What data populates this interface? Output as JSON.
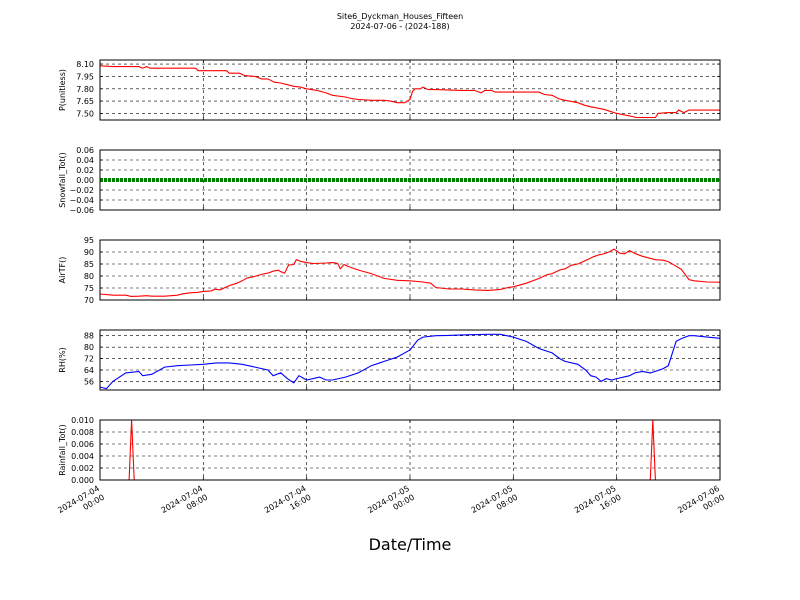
{
  "chart_data": {
    "type": "line",
    "title": "Site6_Dyckman_Houses_Fifteen",
    "subtitle": "2024-07-06 - (2024-188)",
    "xlabel": "Date/Time",
    "x_ticks": [
      {
        "hours": 0,
        "line1": "2024-07-04",
        "line2": "00:00"
      },
      {
        "hours": 8,
        "line1": "2024-07-04",
        "line2": "08:00"
      },
      {
        "hours": 16,
        "line1": "2024-07-04",
        "line2": "16:00"
      },
      {
        "hours": 24,
        "line1": "2024-07-05",
        "line2": "00:00"
      },
      {
        "hours": 32,
        "line1": "2024-07-05",
        "line2": "08:00"
      },
      {
        "hours": 40,
        "line1": "2024-07-05",
        "line2": "16:00"
      },
      {
        "hours": 48,
        "line1": "2024-07-06",
        "line2": "00:00"
      }
    ],
    "xlim_hours": [
      0,
      48
    ],
    "grid": true,
    "panels": [
      {
        "ylabel": "P(unitless)",
        "color": "#ff0000",
        "ylim": [
          7.42,
          8.15
        ],
        "yticks": [
          "8.10",
          "7.95",
          "7.80",
          "7.65",
          "7.50"
        ],
        "ytick_values": [
          8.1,
          7.95,
          7.8,
          7.65,
          7.5
        ],
        "series": [
          [
            0,
            8.08
          ],
          [
            1,
            8.07
          ],
          [
            2,
            8.07
          ],
          [
            3,
            8.07
          ],
          [
            3.3,
            8.05
          ],
          [
            3.6,
            8.07
          ],
          [
            3.9,
            8.05
          ],
          [
            5,
            8.05
          ],
          [
            6,
            8.05
          ],
          [
            7.4,
            8.05
          ],
          [
            7.6,
            8.02
          ],
          [
            8,
            8.02
          ],
          [
            9,
            8.02
          ],
          [
            9.8,
            8.02
          ],
          [
            10,
            7.99
          ],
          [
            10.8,
            7.99
          ],
          [
            11.2,
            7.96
          ],
          [
            12,
            7.95
          ],
          [
            12.5,
            7.92
          ],
          [
            13,
            7.92
          ],
          [
            13.5,
            7.88
          ],
          [
            14,
            7.87
          ],
          [
            14.5,
            7.85
          ],
          [
            15,
            7.83
          ],
          [
            15.5,
            7.82
          ],
          [
            16,
            7.8
          ],
          [
            16.8,
            7.78
          ],
          [
            17.5,
            7.75
          ],
          [
            18,
            7.72
          ],
          [
            19,
            7.7
          ],
          [
            19.5,
            7.68
          ],
          [
            20,
            7.67
          ],
          [
            21,
            7.66
          ],
          [
            22,
            7.66
          ],
          [
            22.5,
            7.65
          ],
          [
            23,
            7.63
          ],
          [
            23.6,
            7.63
          ],
          [
            24,
            7.67
          ],
          [
            24.2,
            7.77
          ],
          [
            24.4,
            7.8
          ],
          [
            24.8,
            7.8
          ],
          [
            25,
            7.82
          ],
          [
            25.4,
            7.79
          ],
          [
            26,
            7.79
          ],
          [
            28,
            7.78
          ],
          [
            29,
            7.78
          ],
          [
            29.5,
            7.75
          ],
          [
            29.8,
            7.78
          ],
          [
            30.3,
            7.78
          ],
          [
            30.6,
            7.76
          ],
          [
            32,
            7.76
          ],
          [
            34,
            7.76
          ],
          [
            34.4,
            7.73
          ],
          [
            35,
            7.72
          ],
          [
            35.5,
            7.68
          ],
          [
            36,
            7.66
          ],
          [
            37,
            7.63
          ],
          [
            37.5,
            7.6
          ],
          [
            38,
            7.58
          ],
          [
            39,
            7.55
          ],
          [
            39.6,
            7.52
          ],
          [
            40,
            7.5
          ],
          [
            41,
            7.47
          ],
          [
            41.5,
            7.45
          ],
          [
            42,
            7.45
          ],
          [
            43,
            7.45
          ],
          [
            43.2,
            7.5
          ],
          [
            44,
            7.51
          ],
          [
            44.6,
            7.51
          ],
          [
            44.8,
            7.54
          ],
          [
            45.2,
            7.51
          ],
          [
            45.6,
            7.54
          ],
          [
            47,
            7.54
          ],
          [
            48,
            7.54
          ]
        ]
      },
      {
        "ylabel": "Snowfall_Tot()",
        "color": "#008000",
        "ylim": [
          -0.06,
          0.06
        ],
        "yticks": [
          "0.06",
          "0.04",
          "0.02",
          "0.00",
          "−0.02",
          "−0.04",
          "−0.06"
        ],
        "ytick_values": [
          0.06,
          0.04,
          0.02,
          0.0,
          -0.02,
          -0.04,
          -0.06
        ],
        "series": [
          [
            0,
            0
          ],
          [
            48,
            0
          ]
        ]
      },
      {
        "ylabel": "AirTF()",
        "color": "#ff0000",
        "ylim": [
          70,
          95
        ],
        "yticks": [
          "95",
          "90",
          "85",
          "80",
          "75",
          "70"
        ],
        "ytick_values": [
          95,
          90,
          85,
          80,
          75,
          70
        ],
        "series": [
          [
            0,
            72.5
          ],
          [
            1,
            72
          ],
          [
            2,
            72
          ],
          [
            2.4,
            71.5
          ],
          [
            3,
            71.6
          ],
          [
            3.6,
            71.8
          ],
          [
            4,
            71.6
          ],
          [
            5,
            71.6
          ],
          [
            6,
            72
          ],
          [
            6.4,
            72.6
          ],
          [
            7,
            73
          ],
          [
            7.6,
            73.2
          ],
          [
            8,
            73.6
          ],
          [
            8.6,
            73.8
          ],
          [
            8.9,
            74.5
          ],
          [
            9.3,
            74.2
          ],
          [
            10,
            76
          ],
          [
            10.6,
            77
          ],
          [
            11,
            78
          ],
          [
            11.4,
            79.2
          ],
          [
            11.8,
            79.6
          ],
          [
            12.2,
            80.2
          ],
          [
            12.6,
            80.8
          ],
          [
            13,
            81.2
          ],
          [
            13.4,
            82
          ],
          [
            13.8,
            82.4
          ],
          [
            14,
            81.8
          ],
          [
            14.3,
            81.2
          ],
          [
            14.6,
            84.6
          ],
          [
            15,
            84.8
          ],
          [
            15.2,
            86.8
          ],
          [
            15.6,
            86
          ],
          [
            16,
            85.6
          ],
          [
            16.5,
            85.2
          ],
          [
            17.5,
            85.4
          ],
          [
            18,
            85.6
          ],
          [
            18.4,
            85.2
          ],
          [
            18.6,
            83
          ],
          [
            18.9,
            84.8
          ],
          [
            19.2,
            84
          ],
          [
            20,
            82.5
          ],
          [
            21,
            81
          ],
          [
            21.6,
            79.8
          ],
          [
            22,
            79
          ],
          [
            23,
            78.2
          ],
          [
            24,
            78
          ],
          [
            25,
            77.5
          ],
          [
            25.6,
            77
          ],
          [
            26,
            75.2
          ],
          [
            27,
            74.6
          ],
          [
            28,
            74.6
          ],
          [
            29,
            74.2
          ],
          [
            30,
            74
          ],
          [
            31,
            74.4
          ],
          [
            31.6,
            75.2
          ],
          [
            32,
            75.5
          ],
          [
            33,
            77
          ],
          [
            34,
            79
          ],
          [
            34.6,
            80.5
          ],
          [
            35,
            81
          ],
          [
            35.6,
            82.5
          ],
          [
            36,
            83
          ],
          [
            36.5,
            84.5
          ],
          [
            37,
            85
          ],
          [
            37.4,
            86
          ],
          [
            37.8,
            87
          ],
          [
            38.2,
            88
          ],
          [
            38.6,
            88.8
          ],
          [
            39,
            89.2
          ],
          [
            39.4,
            90
          ],
          [
            39.8,
            91.2
          ],
          [
            40.2,
            89.6
          ],
          [
            40.6,
            89.2
          ],
          [
            41,
            90.6
          ],
          [
            41.4,
            89.4
          ],
          [
            42,
            88.2
          ],
          [
            43,
            86.8
          ],
          [
            43.6,
            86.6
          ],
          [
            44,
            86
          ],
          [
            45,
            82.8
          ],
          [
            45.6,
            78.5
          ],
          [
            46,
            78
          ],
          [
            47,
            77.5
          ],
          [
            48,
            77.4
          ]
        ]
      },
      {
        "ylabel": "RH(%)",
        "color": "#0000ff",
        "ylim": [
          50,
          92
        ],
        "yticks": [
          "88",
          "80",
          "72",
          "64",
          "56"
        ],
        "ytick_values": [
          88,
          80,
          72,
          64,
          56
        ],
        "series": [
          [
            0,
            52
          ],
          [
            0.5,
            51
          ],
          [
            1,
            56
          ],
          [
            2,
            62
          ],
          [
            3,
            63
          ],
          [
            3.3,
            60
          ],
          [
            4,
            61
          ],
          [
            5,
            66
          ],
          [
            6,
            67
          ],
          [
            7,
            67.5
          ],
          [
            8,
            68
          ],
          [
            9,
            69
          ],
          [
            10,
            69
          ],
          [
            11,
            68
          ],
          [
            12,
            66
          ],
          [
            13,
            64
          ],
          [
            13.4,
            60
          ],
          [
            14,
            62
          ],
          [
            14.5,
            58
          ],
          [
            15,
            55
          ],
          [
            15.4,
            60
          ],
          [
            16,
            57
          ],
          [
            17,
            59
          ],
          [
            17.5,
            57
          ],
          [
            18,
            57
          ],
          [
            19,
            59
          ],
          [
            20,
            62
          ],
          [
            21,
            67
          ],
          [
            22,
            70
          ],
          [
            23,
            73
          ],
          [
            24,
            78
          ],
          [
            24.6,
            85
          ],
          [
            25,
            87
          ],
          [
            26,
            88
          ],
          [
            27,
            88.2
          ],
          [
            28,
            88.6
          ],
          [
            30,
            89
          ],
          [
            31,
            89
          ],
          [
            32,
            87
          ],
          [
            33,
            84
          ],
          [
            34,
            79
          ],
          [
            35,
            76
          ],
          [
            35.6,
            72
          ],
          [
            36,
            70
          ],
          [
            37,
            68
          ],
          [
            37.6,
            64
          ],
          [
            38,
            60
          ],
          [
            38.4,
            59
          ],
          [
            38.8,
            56
          ],
          [
            39.2,
            58
          ],
          [
            39.6,
            57
          ],
          [
            40,
            58
          ],
          [
            41,
            60
          ],
          [
            41.4,
            62
          ],
          [
            42,
            63
          ],
          [
            42.6,
            62
          ],
          [
            43,
            63
          ],
          [
            43.6,
            65
          ],
          [
            44,
            67
          ],
          [
            44.6,
            84
          ],
          [
            45,
            86
          ],
          [
            45.6,
            88
          ],
          [
            46,
            88
          ],
          [
            47,
            87
          ],
          [
            48,
            86.2
          ]
        ]
      },
      {
        "ylabel": "Rainfall_Tot()",
        "color": "#ff0000",
        "ylim": [
          0,
          0.01
        ],
        "yticks": [
          "0.010",
          "0.008",
          "0.006",
          "0.004",
          "0.002",
          "0.000"
        ],
        "ytick_values": [
          0.01,
          0.008,
          0.006,
          0.004,
          0.002,
          0.0
        ],
        "series": [
          [
            0,
            0
          ],
          [
            2.25,
            0
          ],
          [
            2.45,
            0.01
          ],
          [
            2.65,
            0
          ],
          [
            42.6,
            0
          ],
          [
            42.8,
            0.01
          ],
          [
            43.0,
            0
          ],
          [
            48,
            0
          ]
        ]
      }
    ]
  }
}
